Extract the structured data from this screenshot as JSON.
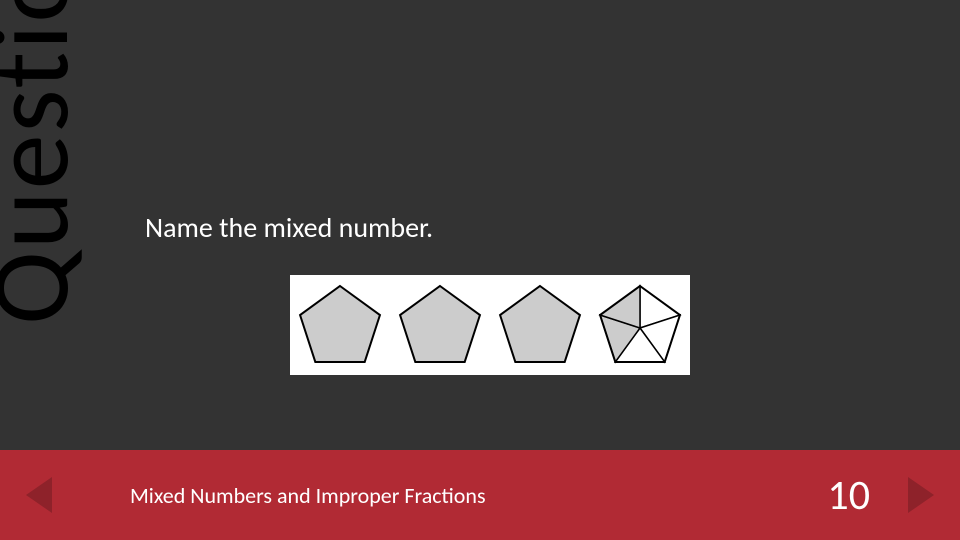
{
  "slide": {
    "vertical_label": "Question",
    "prompt": "Name the mixed number.",
    "figure": {
      "type": "infographic",
      "background": "#ffffff",
      "shapes": [
        {
          "type": "pentagon",
          "fill": "#cccccc",
          "stroke": "#000000",
          "filled_sections": 5,
          "total_sections": 5,
          "show_divisions": false
        },
        {
          "type": "pentagon",
          "fill": "#cccccc",
          "stroke": "#000000",
          "filled_sections": 5,
          "total_sections": 5,
          "show_divisions": false
        },
        {
          "type": "pentagon",
          "fill": "#cccccc",
          "stroke": "#000000",
          "filled_sections": 5,
          "total_sections": 5,
          "show_divisions": false
        },
        {
          "type": "pentagon",
          "fill": "#cccccc",
          "stroke": "#000000",
          "filled_sections": 2,
          "total_sections": 5,
          "show_divisions": true
        }
      ]
    }
  },
  "footer": {
    "title": "Mixed Numbers and Improper Fractions",
    "slide_number": "10",
    "bar_color": "#b12a34",
    "nav_arrow_color": "#8e222a"
  },
  "colors": {
    "slide_bg": "#333333",
    "vertical_text": "#000000",
    "prompt_text": "#ffffff"
  }
}
